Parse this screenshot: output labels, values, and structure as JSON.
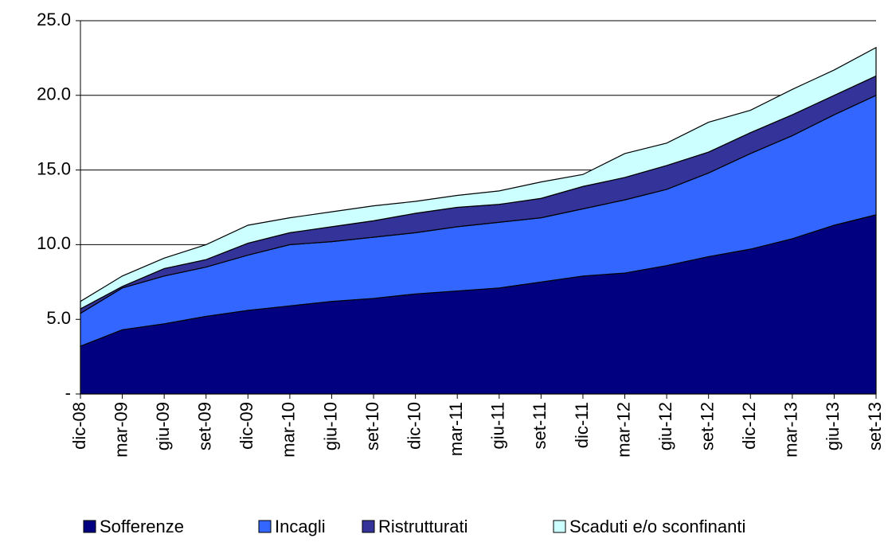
{
  "chart_data": {
    "type": "stacked_area",
    "categories": [
      "dic-08",
      "mar-09",
      "giu-09",
      "set-09",
      "dic-09",
      "mar-10",
      "giu-10",
      "set-10",
      "dic-10",
      "mar-11",
      "giu-11",
      "set-11",
      "dic-11",
      "mar-12",
      "giu-12",
      "set-12",
      "dic-12",
      "mar-13",
      "giu-13",
      "set-13"
    ],
    "series": [
      {
        "name": "Sofferenze",
        "color": "#000080",
        "values": [
          3.2,
          4.3,
          4.7,
          5.2,
          5.6,
          5.9,
          6.2,
          6.4,
          6.7,
          6.9,
          7.1,
          7.5,
          7.9,
          8.1,
          8.6,
          9.2,
          9.7,
          10.4,
          11.3,
          12.0
        ]
      },
      {
        "name": "Incagli",
        "color": "#3366ff",
        "values": [
          2.2,
          2.8,
          3.2,
          3.3,
          3.7,
          4.1,
          4.0,
          4.1,
          4.1,
          4.3,
          4.4,
          4.3,
          4.5,
          4.9,
          5.1,
          5.6,
          6.4,
          6.9,
          7.4,
          8.0
        ]
      },
      {
        "name": "Ristrutturati",
        "color": "#333399",
        "values": [
          0.3,
          0.1,
          0.5,
          0.5,
          0.8,
          0.8,
          1.0,
          1.1,
          1.3,
          1.3,
          1.2,
          1.3,
          1.5,
          1.5,
          1.6,
          1.4,
          1.4,
          1.4,
          1.3,
          1.3
        ]
      },
      {
        "name": "Scaduti e/o sconfinanti",
        "color": "#ccffff",
        "values": [
          0.5,
          0.7,
          0.7,
          1.0,
          1.2,
          1.0,
          1.0,
          1.0,
          0.8,
          0.8,
          0.9,
          1.1,
          0.8,
          1.6,
          1.5,
          2.0,
          1.5,
          1.7,
          1.7,
          1.9
        ]
      }
    ],
    "ylim": [
      0,
      25
    ],
    "yticks": [
      {
        "value": 0,
        "label": "-"
      },
      {
        "value": 5,
        "label": "5.0"
      },
      {
        "value": 10,
        "label": "10.0"
      },
      {
        "value": 15,
        "label": "15.0"
      },
      {
        "value": 20,
        "label": "20.0"
      },
      {
        "value": 25,
        "label": "25.0"
      }
    ],
    "grid": true
  }
}
